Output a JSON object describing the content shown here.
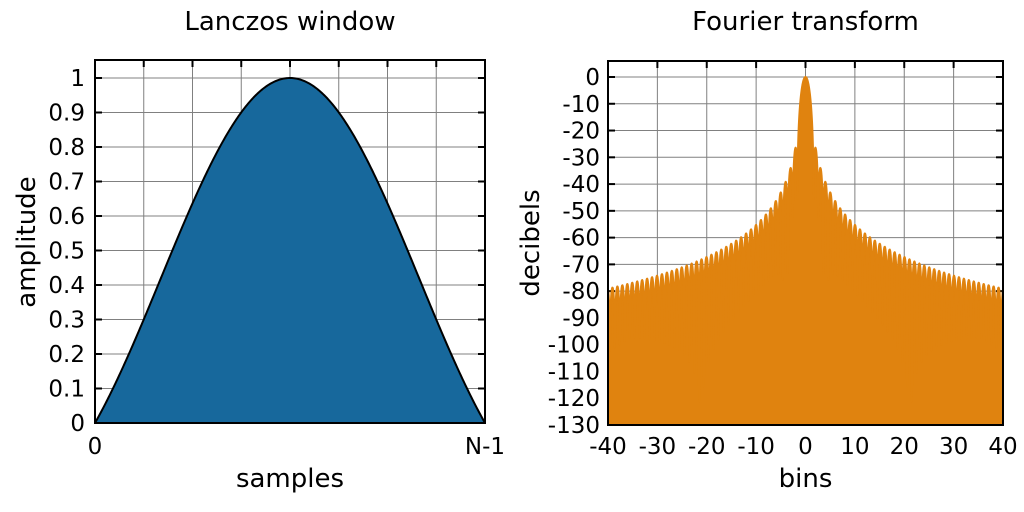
{
  "figure": {
    "background": "#ffffff",
    "border_color": "#000000",
    "grid_color": "#808080",
    "text_color": "#000000"
  },
  "chart_data": [
    {
      "type": "area",
      "title": "Lanczos window",
      "xlabel": "samples",
      "ylabel": "amplitude",
      "fill_color": "#17689c",
      "line_color": "#000000",
      "grid": true,
      "x_axis": {
        "tick_labels": [
          "0",
          "N-1"
        ],
        "tick_fractions": [
          0,
          1
        ],
        "divisions": 8,
        "domain": "n = 0 ... N-1"
      },
      "y_axis": {
        "tick_labels": [
          "1",
          "0.9",
          "0.8",
          "0.7",
          "0.6",
          "0.5",
          "0.4",
          "0.3",
          "0.2",
          "0.1",
          "0"
        ],
        "tick_values": [
          1,
          0.9,
          0.8,
          0.7,
          0.6,
          0.5,
          0.4,
          0.3,
          0.2,
          0.1,
          0
        ],
        "range_shown": [
          0,
          1.052
        ]
      },
      "curve": {
        "function": "w(n) = sinc(2n/(N-1) - 1)",
        "samples_x_fraction": [
          0,
          0.0625,
          0.125,
          0.1875,
          0.25,
          0.3125,
          0.375,
          0.4375,
          0.5,
          0.5625,
          0.625,
          0.6875,
          0.75,
          0.8125,
          0.875,
          0.9375,
          1
        ],
        "samples_amplitude": [
          0,
          0.1392,
          0.3001,
          0.4705,
          0.6366,
          0.7842,
          0.9003,
          0.9745,
          1,
          0.9745,
          0.9003,
          0.7842,
          0.6366,
          0.4705,
          0.3001,
          0.1392,
          0
        ]
      }
    },
    {
      "type": "area",
      "title": "Fourier transform",
      "xlabel": "bins",
      "ylabel": "decibels",
      "fill_color": "#e0830f",
      "grid": true,
      "x_axis": {
        "tick_labels": [
          "-40",
          "-30",
          "-20",
          "-10",
          "0",
          "10",
          "20",
          "30",
          "40"
        ],
        "tick_values": [
          -40,
          -30,
          -20,
          -10,
          0,
          10,
          20,
          30,
          40
        ],
        "range": [
          -40,
          40
        ],
        "divisions": 8
      },
      "y_axis": {
        "tick_labels": [
          "0",
          "-10",
          "-20",
          "-30",
          "-40",
          "-50",
          "-60",
          "-70",
          "-80",
          "-90",
          "-100",
          "-110",
          "-120",
          "-130"
        ],
        "tick_values": [
          0,
          -10,
          -20,
          -30,
          -40,
          -50,
          -60,
          -70,
          -80,
          -90,
          -100,
          -110,
          -120,
          -130
        ],
        "range_shown": [
          -130,
          6
        ]
      },
      "spectrum": {
        "peak_db": 0,
        "first_sidelobe_db": -26.5,
        "null_spacing_bins": 1,
        "envelope_bins": [
          1.65,
          2.5,
          3.5,
          4.5,
          5.5,
          10,
          15,
          20,
          25,
          30,
          35,
          40
        ],
        "envelope_db": [
          -26.5,
          -35,
          -42,
          -47,
          -51,
          -63,
          -67,
          -70,
          -73,
          -75,
          -78,
          -80
        ],
        "floor_db": -130
      }
    }
  ]
}
